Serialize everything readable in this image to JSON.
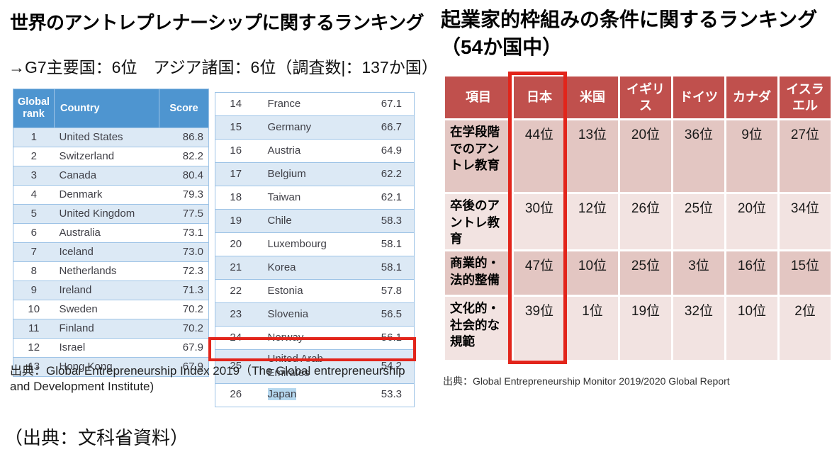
{
  "colors": {
    "gei_header_bg": "#4E95D0",
    "gei_row_alt_bg": "#DCE9F5",
    "gei_border": "#9DC3E6",
    "gem_header_bg": "#C0504D",
    "gem_row_dark_bg": "#E3C6C2",
    "gem_row_light_bg": "#F2E3E1",
    "highlight_red": "#E2251B",
    "selection_blue": "#B5D7EE"
  },
  "left": {
    "title": "世界のアントレプレナーシップに関するランキング",
    "subtitle": "→G7主要国：6位　アジア諸国：6位（調査数|：137か国）",
    "table": {
      "headers": [
        "Global rank",
        "Country",
        "Score"
      ],
      "col1_rows": [
        {
          "rank": 1,
          "country": "United States",
          "score": "86.8"
        },
        {
          "rank": 2,
          "country": "Switzerland",
          "score": "82.2"
        },
        {
          "rank": 3,
          "country": "Canada",
          "score": "80.4"
        },
        {
          "rank": 4,
          "country": "Denmark",
          "score": "79.3"
        },
        {
          "rank": 5,
          "country": "United Kingdom",
          "score": "77.5"
        },
        {
          "rank": 6,
          "country": "Australia",
          "score": "73.1"
        },
        {
          "rank": 7,
          "country": "Iceland",
          "score": "73.0"
        },
        {
          "rank": 8,
          "country": "Netherlands",
          "score": "72.3"
        },
        {
          "rank": 9,
          "country": "Ireland",
          "score": "71.3"
        },
        {
          "rank": 10,
          "country": "Sweden",
          "score": "70.2"
        },
        {
          "rank": 11,
          "country": "Finland",
          "score": "70.2"
        },
        {
          "rank": 12,
          "country": "Israel",
          "score": "67.9"
        },
        {
          "rank": 13,
          "country": "Hong Kong",
          "score": "67.9"
        }
      ],
      "col2_rows": [
        {
          "rank": 14,
          "country": "France",
          "score": "67.1"
        },
        {
          "rank": 15,
          "country": "Germany",
          "score": "66.7"
        },
        {
          "rank": 16,
          "country": "Austria",
          "score": "64.9"
        },
        {
          "rank": 17,
          "country": "Belgium",
          "score": "62.2"
        },
        {
          "rank": 18,
          "country": "Taiwan",
          "score": "62.1"
        },
        {
          "rank": 19,
          "country": "Chile",
          "score": "58.3"
        },
        {
          "rank": 20,
          "country": "Luxembourg",
          "score": "58.1"
        },
        {
          "rank": 21,
          "country": "Korea",
          "score": "58.1"
        },
        {
          "rank": 22,
          "country": "Estonia",
          "score": "57.8"
        },
        {
          "rank": 23,
          "country": "Slovenia",
          "score": "56.5"
        },
        {
          "rank": 24,
          "country": "Norway",
          "score": "56.1"
        },
        {
          "rank": 25,
          "country": "United Arab Emirates",
          "score": "54.2"
        },
        {
          "rank": 26,
          "country": "Japan",
          "score": "53.3",
          "selected": true
        }
      ]
    },
    "source": "出典：Global Entrepreneurship Index 2019（The Global entrepreneurship and Development Institute)"
  },
  "right": {
    "title_line1": "起業家的枠組みの条件に関するランキング",
    "title_line2": "（54か国中）",
    "table": {
      "headers": [
        "項目",
        "日本",
        "米国",
        "イギリス",
        "ドイツ",
        "カナダ",
        "イスラエル"
      ],
      "rows": [
        {
          "label": "在学段階でのアントレ教育",
          "values": [
            "44位",
            "13位",
            "20位",
            "36位",
            "9位",
            "27位"
          ]
        },
        {
          "label": "卒後のアントレ教育",
          "values": [
            "30位",
            "12位",
            "26位",
            "25位",
            "20位",
            "34位"
          ]
        },
        {
          "label": "商業的・法的整備",
          "values": [
            "47位",
            "10位",
            "25位",
            "3位",
            "16位",
            "15位"
          ]
        },
        {
          "label": "文化的・社会的な規範",
          "values": [
            "39位",
            "1位",
            "19位",
            "32位",
            "10位",
            "2位"
          ]
        }
      ]
    },
    "source": "出典：Global Entrepreneurship Monitor 2019/2020 Global Report"
  },
  "footer": {
    "text": "（出典：文科省資料）"
  }
}
